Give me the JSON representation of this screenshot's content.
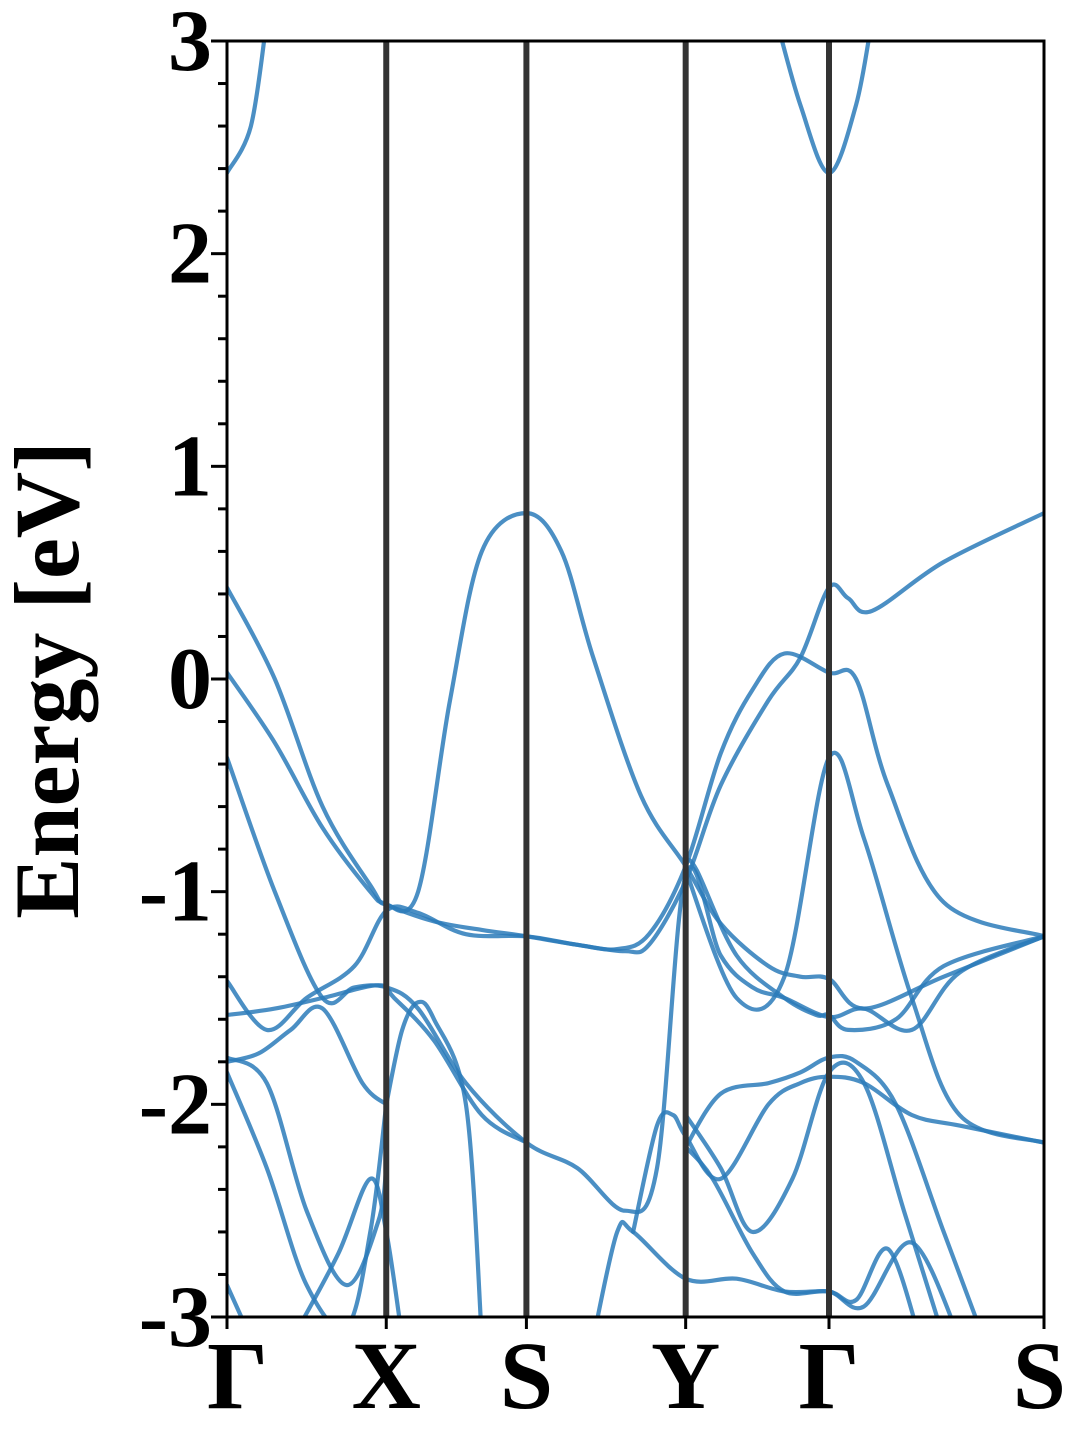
{
  "chart_data": {
    "type": "line",
    "title": "",
    "ylabel": "Energy [eV]",
    "xlabel": "",
    "ylim": [
      -3,
      3
    ],
    "y_ticks": [
      "3",
      "2",
      "1",
      "0",
      "-1",
      "-2",
      "-3"
    ],
    "y_tick_values": [
      3,
      2,
      1,
      0,
      -1,
      -2,
      -3
    ],
    "k_points": [
      {
        "label": "Γ",
        "x": 0
      },
      {
        "label": "X",
        "x": 1
      },
      {
        "label": "S",
        "x": 1.88
      },
      {
        "label": "Y",
        "x": 2.88
      },
      {
        "label": "Γ",
        "x": 3.78
      },
      {
        "label": "S",
        "x": 5.13
      }
    ],
    "xlim": [
      0,
      5.13
    ],
    "grid": false,
    "line_color": "#2b7bba",
    "divider_color": "#333333",
    "series": [
      {
        "x": [
          0,
          0.15,
          0.25
        ],
        "y": [
          2.38,
          2.6,
          3.1
        ]
      },
      {
        "x": [
          3.45,
          3.6,
          3.78,
          3.95,
          4.05
        ],
        "y": [
          3.1,
          2.7,
          2.38,
          2.7,
          3.1
        ]
      },
      {
        "x": [
          0,
          0.3,
          0.6,
          0.9,
          1,
          1.2,
          1.4,
          1.6,
          1.88,
          2.1,
          2.3,
          2.6,
          2.88,
          3.1,
          3.4,
          3.6,
          3.78,
          4.0,
          4.5,
          5.13
        ],
        "y": [
          0.43,
          0.0,
          -0.6,
          -0.97,
          -1.06,
          -1.0,
          -0.1,
          0.6,
          0.78,
          0.6,
          0.1,
          -0.55,
          -0.88,
          -1.15,
          -1.35,
          -1.4,
          -1.41,
          -1.55,
          -1.4,
          -1.21
        ]
      },
      {
        "x": [
          0,
          0.3,
          0.6,
          0.9,
          1,
          1.3,
          1.6,
          1.88,
          2.2,
          2.45,
          2.65,
          2.88,
          3.1,
          3.3,
          3.5,
          3.78,
          3.95,
          4.15,
          4.5,
          5.13
        ],
        "y": [
          0.03,
          -0.3,
          -0.7,
          -1.0,
          -1.06,
          -1.14,
          -1.18,
          -1.21,
          -1.25,
          -1.27,
          -1.2,
          -0.88,
          -0.35,
          -0.05,
          0.12,
          0.03,
          0.0,
          -0.5,
          -1.05,
          -1.21
        ]
      },
      {
        "x": [
          0,
          0.3,
          0.6,
          0.8,
          1,
          1.2,
          1.5,
          1.88,
          2.2,
          2.5,
          2.7,
          2.88,
          3.1,
          3.3,
          3.5,
          3.78,
          4.0,
          4.3,
          4.6,
          5.13
        ],
        "y": [
          -0.37,
          -1.0,
          -1.5,
          -1.45,
          -1.45,
          -1.55,
          -1.9,
          -2.18,
          -2.3,
          -2.5,
          -2.3,
          -0.92,
          -1.3,
          -1.45,
          -1.5,
          -1.59,
          -1.55,
          -1.65,
          -1.38,
          -1.21
        ]
      },
      {
        "x": [
          0,
          0.25,
          0.5,
          0.8,
          1,
          1.2,
          1.5,
          1.88,
          2.2,
          2.5,
          2.65,
          2.88,
          3.1,
          3.4,
          3.6,
          3.78,
          3.9,
          4.05,
          4.5,
          5.13
        ],
        "y": [
          -1.42,
          -1.65,
          -1.5,
          -1.35,
          -1.09,
          -1.1,
          -1.2,
          -1.21,
          -1.25,
          -1.28,
          -1.25,
          -0.95,
          -0.5,
          -0.1,
          0.1,
          0.43,
          0.38,
          0.32,
          0.55,
          0.78
        ]
      },
      {
        "x": [
          0,
          0.3,
          0.6,
          0.95,
          1.05,
          1.3,
          1.6,
          1.88
        ],
        "y": [
          -1.58,
          -1.55,
          -1.5,
          -1.44,
          -1.5,
          -1.7,
          -2.05,
          -2.18
        ]
      },
      {
        "x": [
          0,
          0.2,
          0.4,
          0.6,
          0.85,
          1
        ],
        "y": [
          -1.8,
          -1.76,
          -1.65,
          -1.55,
          -1.9,
          -2.0
        ]
      },
      {
        "x": [
          1,
          1.1,
          1.2,
          1.3,
          1.5,
          1.6
        ],
        "y": [
          -2.0,
          -1.65,
          -1.52,
          -1.6,
          -2.0,
          -3.1
        ]
      },
      {
        "x": [
          0,
          0.25,
          0.5,
          0.75,
          0.95,
          1
        ],
        "y": [
          -1.78,
          -1.9,
          -2.5,
          -2.85,
          -2.55,
          -2.3
        ]
      },
      {
        "x": [
          0,
          0.25,
          0.5,
          0.75,
          0.9,
          1
        ],
        "y": [
          -1.85,
          -2.3,
          -2.85,
          -3.05,
          -2.6,
          -2.0
        ]
      },
      {
        "x": [
          0.45,
          0.7,
          0.9,
          1.0,
          1.1
        ],
        "y": [
          -3.05,
          -2.7,
          -2.35,
          -2.6,
          -3.1
        ]
      },
      {
        "x": [
          0,
          0.12
        ],
        "y": [
          -2.85,
          -3.05
        ]
      },
      {
        "x": [
          2.3,
          2.45,
          2.55,
          2.88,
          3.2,
          3.5,
          3.78,
          3.95,
          4.15,
          4.35
        ],
        "y": [
          -3.1,
          -2.6,
          -2.6,
          -2.82,
          -2.82,
          -2.88,
          -2.88,
          -2.92,
          -2.68,
          -3.1
        ]
      },
      {
        "x": [
          2.55,
          2.7,
          2.8,
          2.88,
          3.1,
          3.4,
          3.6,
          3.78,
          4.0,
          4.3,
          4.6,
          5.13
        ],
        "y": [
          -2.6,
          -2.1,
          -2.05,
          -2.15,
          -2.35,
          -2.0,
          -1.9,
          -1.87,
          -1.9,
          -2.05,
          -2.1,
          -2.18
        ]
      },
      {
        "x": [
          2.88,
          3.1,
          3.4,
          3.6,
          3.78,
          3.95,
          4.2,
          4.5,
          4.75
        ],
        "y": [
          -2.2,
          -1.95,
          -1.9,
          -1.85,
          -1.78,
          -1.8,
          -2.0,
          -2.6,
          -3.1
        ]
      },
      {
        "x": [
          2.88,
          3.05,
          3.3,
          3.5,
          3.78,
          4.0,
          4.3,
          4.6
        ],
        "y": [
          -2.2,
          -2.35,
          -2.7,
          -2.88,
          -2.88,
          -2.95,
          -2.65,
          -3.1
        ]
      },
      {
        "x": [
          2.88,
          3.1,
          3.3,
          3.55,
          3.78,
          4.0,
          4.25,
          4.5
        ],
        "y": [
          -2.05,
          -2.3,
          -2.6,
          -2.35,
          -1.85,
          -1.9,
          -2.5,
          -3.1
        ]
      },
      {
        "x": [
          2.88,
          3.2,
          3.5,
          3.78,
          4.0,
          4.3,
          4.6,
          5.13
        ],
        "y": [
          -0.9,
          -1.5,
          -1.4,
          -0.37,
          -0.75,
          -1.5,
          -2.05,
          -2.18
        ]
      },
      {
        "x": [
          2.88,
          2.95,
          3.2,
          3.5,
          3.7,
          3.78,
          3.9,
          4.2,
          4.5,
          5.13
        ],
        "y": [
          -0.85,
          -0.9,
          -1.3,
          -1.5,
          -1.58,
          -1.58,
          -1.65,
          -1.6,
          -1.35,
          -1.21
        ]
      }
    ]
  }
}
